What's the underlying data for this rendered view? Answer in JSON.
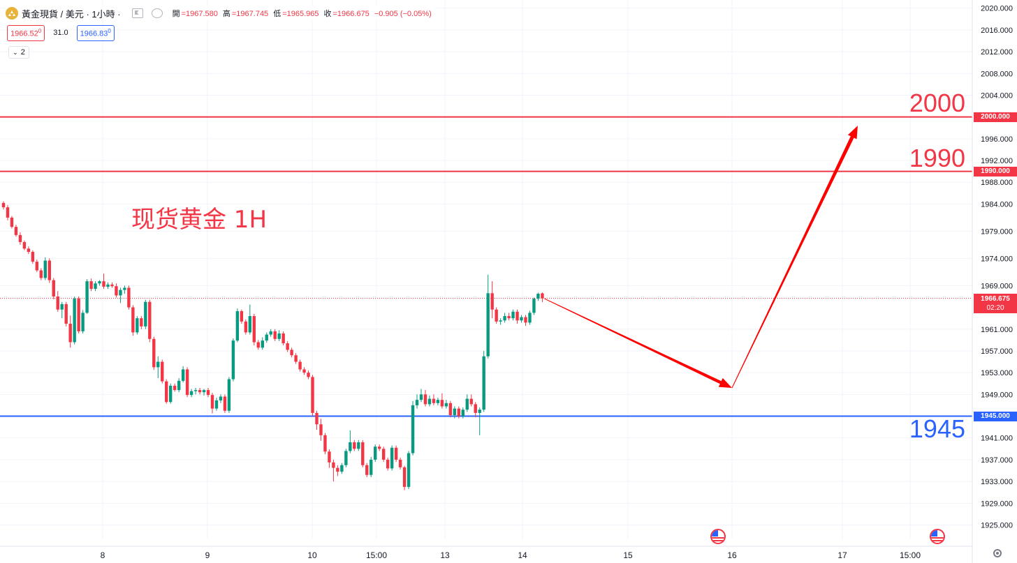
{
  "header": {
    "symbol": "黃金現貨 / 美元 · 1小時 ·",
    "ohlc": [
      {
        "k": "開",
        "v": "=1967.580"
      },
      {
        "k": "高",
        "v": "=1967.745"
      },
      {
        "k": "低",
        "v": "=1965.965"
      },
      {
        "k": "收",
        "v": "=1966.675"
      },
      {
        "k": "",
        "v": "−0.905 (−0.05%)"
      }
    ],
    "bid": "1966.52",
    "bid_sup": "0",
    "spread": "31.0",
    "ask": "1966.83",
    "ask_sup": "0",
    "indicator_count": "2"
  },
  "annotation_text": "现货黄金 1H",
  "big_labels": {
    "l2000": "2000",
    "l1990": "1990",
    "l1945": "1945"
  },
  "price_labels": {
    "l2000": "2000.000",
    "l1990": "1990.000",
    "l1945": "1945.000",
    "current": "1966.675",
    "countdown": "02:20"
  },
  "colors": {
    "up": "#089981",
    "down": "#f23645",
    "blue": "#2962ff",
    "red": "#f23645"
  },
  "chart_data": {
    "type": "candlestick",
    "y_axis": {
      "range": [
        1922.5,
        2021.5
      ],
      "ticks": [
        "1925.000",
        "1929.000",
        "1933.000",
        "1937.000",
        "1941.000",
        "1945.000",
        "1949.000",
        "1953.000",
        "1957.000",
        "1961.000",
        "1966.675",
        "1969.000",
        "1974.000",
        "1979.000",
        "1984.000",
        "1988.000",
        "1992.000",
        "1996.000",
        "2000.000",
        "2004.000",
        "2008.000",
        "2012.000",
        "2016.000",
        "2020.000"
      ]
    },
    "x_axis": {
      "ticks": [
        "8",
        "9",
        "10",
        "15:00",
        "13",
        "14",
        "15",
        "16",
        "17",
        "15:00"
      ]
    },
    "horizontal_lines": [
      {
        "price": 2000,
        "color": "#f23645"
      },
      {
        "price": 1990,
        "color": "#f23645"
      },
      {
        "price": 1945,
        "color": "#2962ff"
      }
    ],
    "current_price": 1966.675,
    "projection_path": [
      1966.6,
      1950.2,
      1998.4
    ],
    "candles": [
      [
        1984.2,
        1984.5,
        1983.0,
        1983.4
      ],
      [
        1983.4,
        1983.8,
        1981.0,
        1981.5
      ],
      [
        1981.5,
        1981.8,
        1979.5,
        1979.8
      ],
      [
        1979.8,
        1980.2,
        1978.0,
        1978.3
      ],
      [
        1978.3,
        1978.8,
        1976.5,
        1977.0
      ],
      [
        1977.0,
        1977.3,
        1975.5,
        1975.8
      ],
      [
        1975.8,
        1976.2,
        1974.8,
        1975.2
      ],
      [
        1975.2,
        1975.5,
        1973.0,
        1973.4
      ],
      [
        1973.4,
        1973.8,
        1971.5,
        1971.8
      ],
      [
        1971.8,
        1972.2,
        1970.0,
        1970.4
      ],
      [
        1970.4,
        1974.2,
        1970.0,
        1973.6
      ],
      [
        1973.6,
        1974.0,
        1969.5,
        1970.0
      ],
      [
        1970.0,
        1970.4,
        1966.5,
        1967.0
      ],
      [
        1967.0,
        1968.0,
        1964.2,
        1964.6
      ],
      [
        1964.6,
        1966.0,
        1963.0,
        1965.6
      ],
      [
        1965.6,
        1966.0,
        1961.5,
        1962.0
      ],
      [
        1962.0,
        1963.5,
        1957.6,
        1958.6
      ],
      [
        1958.6,
        1967.0,
        1958.2,
        1966.6
      ],
      [
        1966.6,
        1967.0,
        1960.2,
        1960.6
      ],
      [
        1960.6,
        1964.5,
        1960.2,
        1964.0
      ],
      [
        1964.0,
        1970.2,
        1963.8,
        1969.8
      ],
      [
        1969.8,
        1970.3,
        1968.0,
        1968.4
      ],
      [
        1968.4,
        1969.8,
        1968.0,
        1969.4
      ],
      [
        1969.4,
        1970.0,
        1969.0,
        1969.8
      ],
      [
        1969.8,
        1971.2,
        1968.4,
        1968.8
      ],
      [
        1968.8,
        1969.6,
        1968.4,
        1969.2
      ],
      [
        1969.2,
        1969.6,
        1968.6,
        1968.9
      ],
      [
        1968.9,
        1969.4,
        1966.8,
        1967.2
      ],
      [
        1967.2,
        1968.6,
        1965.8,
        1968.2
      ],
      [
        1968.2,
        1969.0,
        1967.5,
        1968.6
      ],
      [
        1968.6,
        1969.0,
        1964.6,
        1965.0
      ],
      [
        1965.0,
        1965.4,
        1959.8,
        1960.4
      ],
      [
        1960.4,
        1963.4,
        1960.0,
        1963.0
      ],
      [
        1963.0,
        1963.4,
        1961.0,
        1961.5
      ],
      [
        1961.5,
        1966.4,
        1961.0,
        1966.0
      ],
      [
        1966.0,
        1966.4,
        1958.6,
        1959.2
      ],
      [
        1959.2,
        1959.6,
        1953.5,
        1954.0
      ],
      [
        1954.0,
        1956.0,
        1952.0,
        1955.0
      ],
      [
        1955.0,
        1955.4,
        1951.0,
        1951.4
      ],
      [
        1951.4,
        1951.8,
        1947.3,
        1947.6
      ],
      [
        1947.6,
        1951.0,
        1947.3,
        1950.6
      ],
      [
        1950.6,
        1951.0,
        1949.5,
        1949.8
      ],
      [
        1949.8,
        1952.0,
        1949.4,
        1951.5
      ],
      [
        1951.5,
        1954.2,
        1951.2,
        1953.6
      ],
      [
        1953.6,
        1954.0,
        1948.5,
        1948.9
      ],
      [
        1948.9,
        1950.0,
        1948.5,
        1949.6
      ],
      [
        1949.6,
        1950.2,
        1949.0,
        1949.8
      ],
      [
        1949.8,
        1950.2,
        1949.0,
        1949.4
      ],
      [
        1949.4,
        1950.0,
        1948.8,
        1949.8
      ],
      [
        1949.8,
        1950.2,
        1948.5,
        1948.9
      ],
      [
        1948.9,
        1949.3,
        1945.5,
        1946.4
      ],
      [
        1946.4,
        1948.4,
        1946.0,
        1947.9
      ],
      [
        1947.9,
        1949.0,
        1947.4,
        1948.6
      ],
      [
        1948.6,
        1949.0,
        1945.6,
        1946.0
      ],
      [
        1946.0,
        1952.2,
        1945.6,
        1951.8
      ],
      [
        1951.8,
        1959.3,
        1951.4,
        1958.9
      ],
      [
        1958.9,
        1964.8,
        1958.6,
        1964.3
      ],
      [
        1964.3,
        1964.6,
        1962.0,
        1962.4
      ],
      [
        1962.4,
        1962.8,
        1960.0,
        1960.4
      ],
      [
        1960.4,
        1965.5,
        1960.0,
        1963.4
      ],
      [
        1963.4,
        1963.8,
        1958.0,
        1958.6
      ],
      [
        1958.6,
        1959.0,
        1957.2,
        1957.6
      ],
      [
        1957.6,
        1959.5,
        1957.2,
        1958.9
      ],
      [
        1958.9,
        1960.4,
        1958.5,
        1960.0
      ],
      [
        1960.0,
        1961.0,
        1959.6,
        1960.6
      ],
      [
        1960.6,
        1961.0,
        1958.8,
        1959.2
      ],
      [
        1959.2,
        1960.8,
        1958.8,
        1960.2
      ],
      [
        1960.2,
        1960.6,
        1958.0,
        1958.4
      ],
      [
        1958.4,
        1958.8,
        1956.8,
        1957.2
      ],
      [
        1957.2,
        1957.6,
        1955.8,
        1956.2
      ],
      [
        1956.2,
        1956.6,
        1954.6,
        1955.0
      ],
      [
        1955.0,
        1955.4,
        1953.2,
        1953.6
      ],
      [
        1953.6,
        1954.0,
        1952.6,
        1953.0
      ],
      [
        1953.0,
        1953.4,
        1951.8,
        1952.2
      ],
      [
        1952.2,
        1952.6,
        1945.0,
        1945.6
      ],
      [
        1945.6,
        1946.0,
        1942.5,
        1943.5
      ],
      [
        1943.5,
        1944.5,
        1940.5,
        1941.5
      ],
      [
        1941.5,
        1941.9,
        1938.0,
        1938.5
      ],
      [
        1938.5,
        1938.9,
        1935.5,
        1936.5
      ],
      [
        1936.5,
        1937.0,
        1933.0,
        1935.5
      ],
      [
        1935.5,
        1936.0,
        1934.0,
        1934.8
      ],
      [
        1934.8,
        1936.4,
        1934.4,
        1936.0
      ],
      [
        1936.0,
        1939.0,
        1935.6,
        1938.6
      ],
      [
        1938.6,
        1942.4,
        1938.2,
        1940.2
      ],
      [
        1940.2,
        1940.6,
        1938.6,
        1939.0
      ],
      [
        1939.0,
        1940.6,
        1938.6,
        1940.2
      ],
      [
        1940.2,
        1940.6,
        1935.6,
        1936.0
      ],
      [
        1936.0,
        1936.4,
        1933.8,
        1934.2
      ],
      [
        1934.2,
        1937.5,
        1933.8,
        1937.0
      ],
      [
        1937.0,
        1939.8,
        1936.6,
        1939.4
      ],
      [
        1939.4,
        1939.8,
        1938.6,
        1939.0
      ],
      [
        1939.0,
        1939.4,
        1936.6,
        1937.0
      ],
      [
        1937.0,
        1937.4,
        1935.0,
        1935.4
      ],
      [
        1935.4,
        1939.6,
        1935.0,
        1939.2
      ],
      [
        1939.2,
        1939.6,
        1936.6,
        1937.0
      ],
      [
        1937.0,
        1937.4,
        1935.2,
        1935.6
      ],
      [
        1935.6,
        1935.9,
        1931.4,
        1932.0
      ],
      [
        1932.0,
        1938.6,
        1931.6,
        1938.2
      ],
      [
        1938.2,
        1947.8,
        1937.8,
        1947.0
      ],
      [
        1947.0,
        1949.0,
        1946.4,
        1948.0
      ],
      [
        1948.0,
        1950.0,
        1947.6,
        1949.0
      ],
      [
        1949.0,
        1949.8,
        1946.8,
        1947.2
      ],
      [
        1947.2,
        1948.8,
        1946.8,
        1948.2
      ],
      [
        1948.2,
        1949.0,
        1947.0,
        1947.4
      ],
      [
        1947.4,
        1948.4,
        1947.0,
        1948.0
      ],
      [
        1948.0,
        1949.2,
        1946.4,
        1946.8
      ],
      [
        1946.8,
        1948.0,
        1946.4,
        1947.4
      ],
      [
        1947.4,
        1947.8,
        1944.8,
        1945.2
      ],
      [
        1945.2,
        1946.8,
        1944.6,
        1946.4
      ],
      [
        1946.4,
        1946.8,
        1944.6,
        1945.0
      ],
      [
        1945.0,
        1946.6,
        1944.6,
        1946.2
      ],
      [
        1946.2,
        1949.0,
        1945.8,
        1948.2
      ],
      [
        1948.2,
        1949.0,
        1946.8,
        1947.2
      ],
      [
        1947.2,
        1947.6,
        1944.8,
        1945.6
      ],
      [
        1945.6,
        1946.6,
        1941.5,
        1946.2
      ],
      [
        1946.2,
        1957.0,
        1945.8,
        1956.0
      ],
      [
        1956.0,
        1971.0,
        1955.6,
        1967.6
      ],
      [
        1967.6,
        1969.8,
        1963.0,
        1964.6
      ],
      [
        1964.6,
        1965.0,
        1962.0,
        1962.4
      ],
      [
        1962.4,
        1963.0,
        1961.8,
        1962.6
      ],
      [
        1962.6,
        1964.0,
        1962.2,
        1963.4
      ],
      [
        1963.4,
        1964.0,
        1962.6,
        1963.0
      ],
      [
        1963.0,
        1964.6,
        1962.6,
        1964.2
      ],
      [
        1964.2,
        1964.6,
        1962.0,
        1962.6
      ],
      [
        1962.6,
        1963.6,
        1962.2,
        1963.2
      ],
      [
        1963.2,
        1963.6,
        1961.6,
        1962.2
      ],
      [
        1962.2,
        1964.4,
        1961.8,
        1964.0
      ],
      [
        1964.0,
        1966.8,
        1963.6,
        1966.6
      ],
      [
        1966.6,
        1967.7,
        1966.2,
        1967.5
      ],
      [
        1967.58,
        1967.745,
        1965.965,
        1966.675
      ]
    ]
  }
}
